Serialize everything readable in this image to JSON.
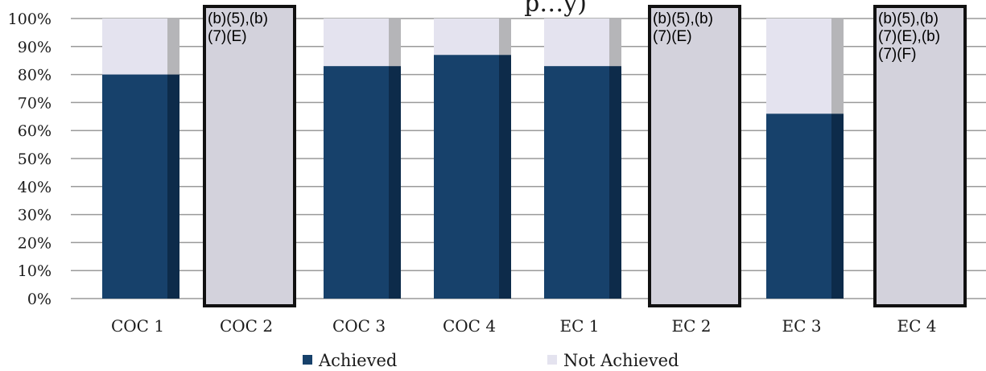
{
  "chart_data": {
    "type": "bar",
    "stacked": true,
    "title_fragment": "p…y)",
    "categories": [
      "COC 1",
      "COC 2",
      "COC 3",
      "COC 4",
      "EC 1",
      "EC 2",
      "EC 3",
      "EC 4"
    ],
    "series": [
      {
        "name": "Achieved",
        "values": [
          80,
          null,
          83,
          87,
          83,
          null,
          66,
          null
        ]
      },
      {
        "name": "Not Achieved",
        "values": [
          20,
          null,
          17,
          13,
          17,
          null,
          34,
          null
        ]
      }
    ],
    "redacted": [
      {
        "category": "COC 2",
        "note_lines": [
          "(b)(5),(b)",
          "(7)(E)"
        ]
      },
      {
        "category": "EC 2",
        "note_lines": [
          "(b)(5),(b)",
          "(7)(E)"
        ]
      },
      {
        "category": "EC 4",
        "note_lines": [
          "(b)(5),(b)",
          "(7)(E),(b)",
          "(7)(F)"
        ]
      }
    ],
    "ylim": [
      0,
      100
    ],
    "yticks": [
      "0%",
      "10%",
      "20%",
      "30%",
      "40%",
      "50%",
      "60%",
      "70%",
      "80%",
      "90%",
      "100%"
    ],
    "grid": true,
    "legend_position": "bottom",
    "colors": {
      "achieved": "#17416b",
      "achieved_side": "#0d2b4a",
      "not_achieved": "#e4e3ef",
      "not_achieved_side": "#b5b5b8",
      "redaction_fill": "#d3d2dc",
      "gridline": "#9a9a9a"
    }
  }
}
